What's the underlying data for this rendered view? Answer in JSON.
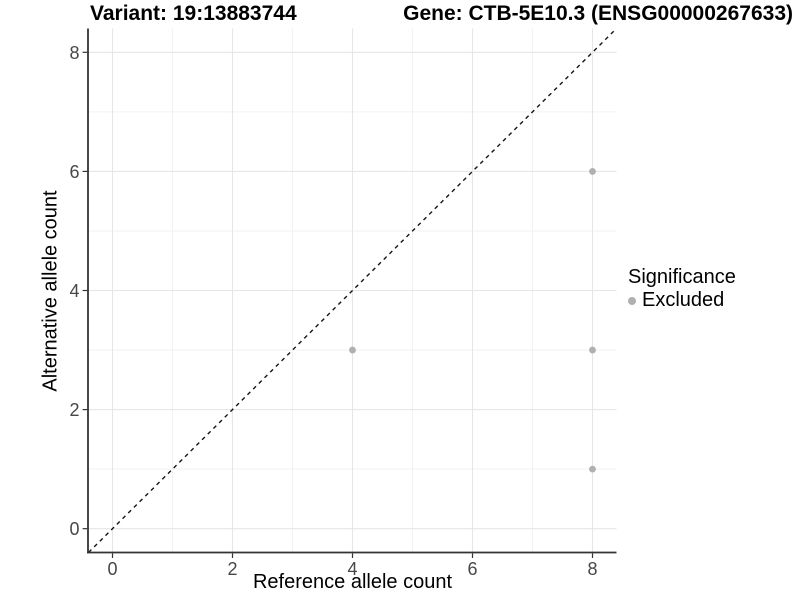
{
  "colors": {
    "point": "#b0b0b0",
    "grid_major": "#e6e6e6",
    "grid_minor": "#f2f2f2",
    "axis_line": "#333333",
    "tick_label": "#474747",
    "reference_line": "#141414",
    "title_text": "#000000"
  },
  "chart_data": {
    "type": "scatter",
    "title_left": "Variant: 19:13883744",
    "title_right": "Gene: CTB-5E10.3 (ENSG00000267633)",
    "xlabel": "Reference allele count",
    "ylabel": "Alternative allele count",
    "xlim": [
      -0.4,
      8.4
    ],
    "ylim": [
      -0.4,
      8.4
    ],
    "xticks": [
      0,
      2,
      4,
      6,
      8
    ],
    "yticks": [
      0,
      2,
      4,
      6,
      8
    ],
    "xticks_minor": [
      1,
      3,
      5,
      7
    ],
    "yticks_minor": [
      1,
      3,
      5,
      7
    ],
    "grid": "major and minor gridlines on white background",
    "legend": {
      "title": "Significance",
      "position": "right",
      "items": [
        {
          "label": "Excluded",
          "color": "#b0b0b0"
        }
      ]
    },
    "series": [
      {
        "name": "Excluded",
        "color": "#b0b0b0",
        "points": [
          {
            "x": 4,
            "y": 3
          },
          {
            "x": 8,
            "y": 1
          },
          {
            "x": 8,
            "y": 3
          },
          {
            "x": 8,
            "y": 6
          }
        ]
      }
    ],
    "reference_line": {
      "kind": "identity-diagonal",
      "style": "dashed",
      "x1": -0.4,
      "y1": -0.4,
      "x2": 8.4,
      "y2": 8.4
    }
  }
}
